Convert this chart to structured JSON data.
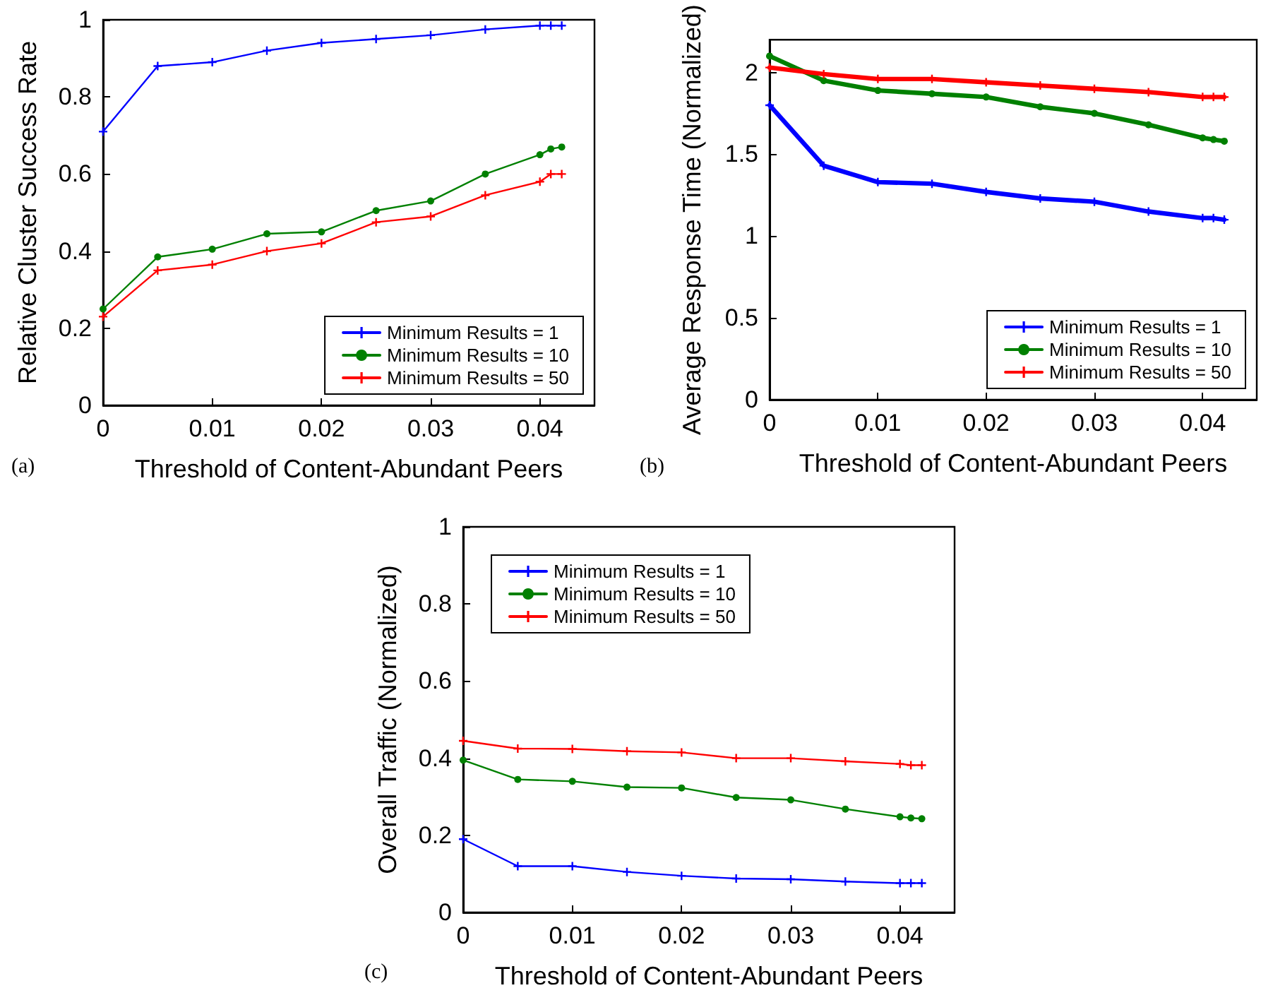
{
  "chart_data": [
    {
      "type": "line",
      "xlabel": "Threshold of Content-Abundant Peers",
      "ylabel": "Relative Cluster Success Rate",
      "annotations": [
        "(a)"
      ],
      "x": [
        0,
        0.005,
        0.01,
        0.015,
        0.02,
        0.025,
        0.03,
        0.035,
        0.04,
        0.041,
        0.042
      ],
      "xlim": [
        0,
        0.045
      ],
      "xticks": [
        0,
        0.01,
        0.02,
        0.03,
        0.04
      ],
      "ylim": [
        0,
        1
      ],
      "yticks": [
        0,
        0.2,
        0.4,
        0.6,
        0.8,
        1
      ],
      "grid": false,
      "legend": "bottom right",
      "line_style": "solid",
      "series": [
        {
          "name": "Minimum Results = 1",
          "color": "#0000ff",
          "marker": "cross",
          "values": [
            0.71,
            0.88,
            0.89,
            0.92,
            0.94,
            0.95,
            0.96,
            0.975,
            0.985,
            0.985,
            0.985
          ]
        },
        {
          "name": "Minimum Results = 10",
          "color": "#008000",
          "marker": "circle",
          "values": [
            0.25,
            0.385,
            0.405,
            0.445,
            0.45,
            0.505,
            0.53,
            0.6,
            0.65,
            0.665,
            0.67
          ]
        },
        {
          "name": "Minimum Results = 50",
          "color": "#ff0000",
          "marker": "cross",
          "values": [
            0.23,
            0.35,
            0.365,
            0.4,
            0.42,
            0.475,
            0.49,
            0.545,
            0.58,
            0.6,
            0.6
          ]
        }
      ]
    },
    {
      "type": "line",
      "xlabel": "Threshold of Content-Abundant Peers",
      "ylabel": "Average Response Time (Normalized)",
      "annotations": [
        "(b)"
      ],
      "x": [
        0,
        0.005,
        0.01,
        0.015,
        0.02,
        0.025,
        0.03,
        0.035,
        0.04,
        0.041,
        0.042
      ],
      "xlim": [
        0,
        0.045
      ],
      "xticks": [
        0,
        0.01,
        0.02,
        0.03,
        0.04
      ],
      "ylim": [
        0,
        2.2
      ],
      "yticks": [
        0,
        0.5,
        1,
        1.5,
        2
      ],
      "grid": false,
      "legend": "bottom right",
      "line_style": "solid",
      "series": [
        {
          "name": "Minimum Results = 1",
          "color": "#0000ff",
          "marker": "cross",
          "values": [
            1.8,
            1.43,
            1.33,
            1.32,
            1.27,
            1.23,
            1.21,
            1.15,
            1.11,
            1.11,
            1.1
          ]
        },
        {
          "name": "Minimum Results = 10",
          "color": "#008000",
          "marker": "circle",
          "values": [
            2.1,
            1.95,
            1.89,
            1.87,
            1.85,
            1.79,
            1.75,
            1.68,
            1.6,
            1.59,
            1.58
          ]
        },
        {
          "name": "Minimum Results = 50",
          "color": "#ff0000",
          "marker": "cross",
          "values": [
            2.03,
            1.99,
            1.96,
            1.96,
            1.94,
            1.92,
            1.9,
            1.88,
            1.85,
            1.85,
            1.85
          ]
        }
      ]
    },
    {
      "type": "line",
      "xlabel": "Threshold of Content-Abundant Peers",
      "ylabel": "Overall Traffic (Normalized)",
      "annotations": [
        "(c)"
      ],
      "x": [
        0,
        0.005,
        0.01,
        0.015,
        0.02,
        0.025,
        0.03,
        0.035,
        0.04,
        0.041,
        0.042
      ],
      "xlim": [
        0,
        0.045
      ],
      "xticks": [
        0,
        0.01,
        0.02,
        0.03,
        0.04
      ],
      "ylim": [
        0,
        1
      ],
      "yticks": [
        0,
        0.2,
        0.4,
        0.6,
        0.8,
        1
      ],
      "grid": false,
      "legend": "top left",
      "line_style": "solid",
      "series": [
        {
          "name": "Minimum Results = 1",
          "color": "#0000ff",
          "marker": "cross",
          "values": [
            0.19,
            0.12,
            0.12,
            0.105,
            0.095,
            0.088,
            0.086,
            0.08,
            0.076,
            0.076,
            0.076
          ]
        },
        {
          "name": "Minimum Results = 10",
          "color": "#008000",
          "marker": "circle",
          "values": [
            0.395,
            0.345,
            0.34,
            0.325,
            0.323,
            0.298,
            0.292,
            0.268,
            0.248,
            0.245,
            0.243
          ]
        },
        {
          "name": "Minimum Results = 50",
          "color": "#ff0000",
          "marker": "cross",
          "values": [
            0.445,
            0.425,
            0.424,
            0.418,
            0.415,
            0.4,
            0.4,
            0.392,
            0.385,
            0.382,
            0.382
          ]
        }
      ]
    }
  ]
}
